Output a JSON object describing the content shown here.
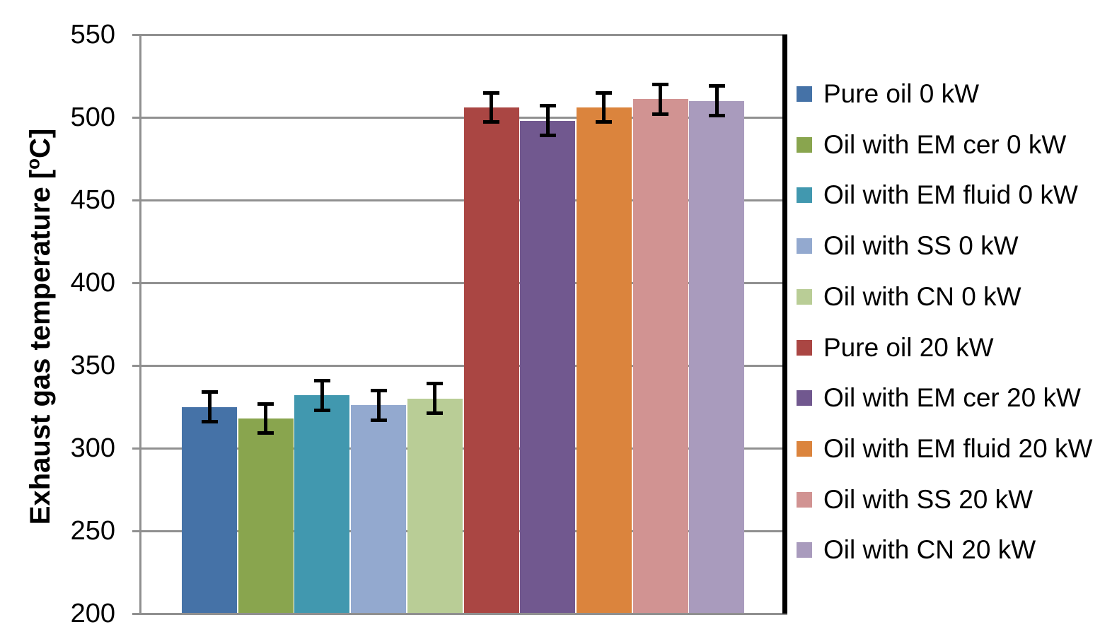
{
  "chart_data": {
    "type": "bar",
    "title": "",
    "ylabel": {
      "prefix": "Exhaust gas temperature [",
      "sup": "o",
      "suffix": "C]"
    },
    "y_axis": {
      "min": 200,
      "max": 550,
      "tick_step": 50,
      "ticks": [
        550,
        500,
        450,
        400,
        350,
        300,
        250,
        200
      ]
    },
    "grid": true,
    "legend_position": "right",
    "colors": {
      "axis": "#909090",
      "plot_right_border": "#000000",
      "error_bar": "#000000",
      "text": "#000000"
    },
    "series": [
      {
        "name": "Pure oil 0 kW",
        "value": 325,
        "error": 10,
        "color": "#4572A7"
      },
      {
        "name": "Oil with EM cer 0 kW",
        "value": 318,
        "error": 10,
        "color": "#89A54E"
      },
      {
        "name": "Oil with EM fluid 0 kW",
        "value": 332,
        "error": 10,
        "color": "#4198AF"
      },
      {
        "name": "Oil with SS 0 kW",
        "value": 326,
        "error": 10,
        "color": "#93A9CF"
      },
      {
        "name": "Oil with CN 0 kW",
        "value": 330,
        "error": 10,
        "color": "#B9CD96"
      },
      {
        "name": "Pure oil 20 kW",
        "value": 506,
        "error": 10,
        "color": "#AA4643"
      },
      {
        "name": "Oil with EM cer 20 kW",
        "value": 498,
        "error": 10,
        "color": "#71588F"
      },
      {
        "name": "Oil with EM fluid 20 kW",
        "value": 506,
        "error": 10,
        "color": "#DB843D"
      },
      {
        "name": "Oil with SS 20 kW",
        "value": 511,
        "error": 10,
        "color": "#D19392"
      },
      {
        "name": "Oil with CN 20 kW",
        "value": 510,
        "error": 10,
        "color": "#A99BBD"
      }
    ]
  }
}
